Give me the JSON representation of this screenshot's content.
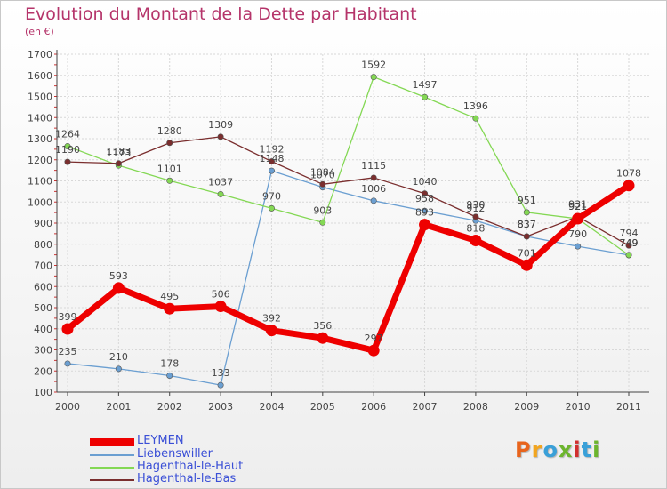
{
  "title": "Evolution du Montant de la Dette par Habitant",
  "unit": "(en €)",
  "logo": {
    "text": "Proxiti",
    "colors": [
      "#e8641c",
      "#f2a51f",
      "#3aa0d8",
      "#6cb52d",
      "#d12f2f",
      "#3aa0d8",
      "#6cb52d"
    ]
  },
  "chart_data": {
    "type": "line",
    "x": [
      "2000",
      "2001",
      "2002",
      "2003",
      "2004",
      "2005",
      "2006",
      "2007",
      "2008",
      "2009",
      "2010",
      "2011"
    ],
    "yticks": [
      "100",
      "200",
      "300",
      "400",
      "500",
      "600",
      "700",
      "800",
      "900",
      "1000",
      "1100",
      "1200",
      "1300",
      "1400",
      "1500",
      "1600",
      "1700"
    ],
    "ylim": [
      100,
      1700
    ],
    "legend_position": "bottom-left",
    "series": [
      {
        "name": "LEYMEN",
        "color": "#ee0000",
        "values": [
          399,
          593,
          495,
          506,
          392,
          356,
          297,
          893,
          818,
          701,
          921,
          1078
        ]
      },
      {
        "name": "Liebenswiller",
        "color": "#6b9fd1",
        "values": [
          235,
          210,
          178,
          133,
          1148,
          1070,
          1006,
          958,
          912,
          837,
          790,
          749
        ]
      },
      {
        "name": "Hagenthal-le-Haut",
        "color": "#84d854",
        "values": [
          1264,
          1173,
          1101,
          1037,
          970,
          903,
          1592,
          1497,
          1396,
          951,
          921,
          749
        ]
      },
      {
        "name": "Hagenthal-le-Bas",
        "color": "#7a2e2e",
        "values": [
          1190,
          1183,
          1280,
          1309,
          1192,
          1084,
          1115,
          1040,
          930,
          837,
          931,
          794
        ]
      }
    ]
  }
}
